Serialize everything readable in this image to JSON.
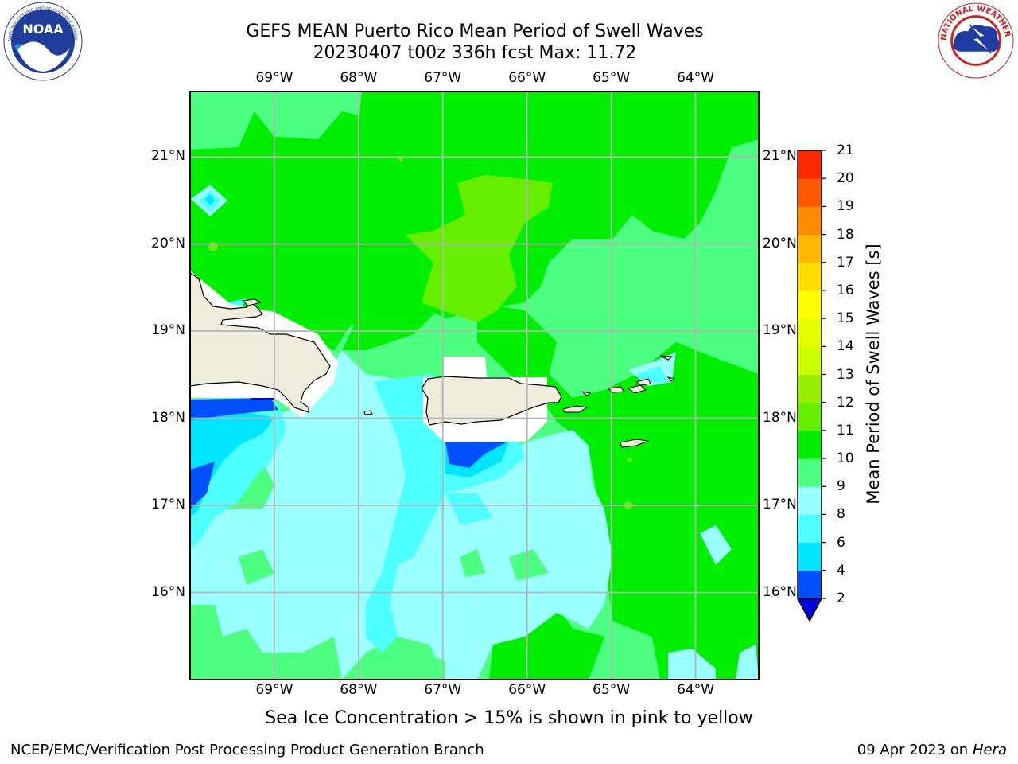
{
  "header": {
    "title_line1": "GEFS MEAN Puerto Rico Mean Period of Swell Waves",
    "title_line2": "20230407 t00z 336h fcst   Max: 11.72"
  },
  "logos": {
    "left": {
      "icon": "noaa-logo-icon",
      "text": "NOAA",
      "ring_text": "NATIONAL OCEANIC AND ATMOSPHERIC ADMINISTRATION · U.S. DEPARTMENT OF COMMERCE"
    },
    "right": {
      "icon": "nws-logo-icon",
      "ring_text": "NATIONAL WEATHER SERVICE"
    }
  },
  "map": {
    "longitude_labels": [
      "69°W",
      "68°W",
      "67°W",
      "66°W",
      "65°W",
      "64°W"
    ],
    "latitude_labels": [
      "21°N",
      "20°N",
      "19°N",
      "18°N",
      "17°N",
      "16°N"
    ],
    "longitudes": [
      -69,
      -68,
      -67,
      -66,
      -65,
      -64
    ],
    "latitudes": [
      21,
      20,
      19,
      18,
      17,
      16
    ],
    "extent": {
      "lon_min": -70.0,
      "lon_max": -63.25,
      "lat_min": 15.0,
      "lat_max": 21.75
    },
    "max_value": 11.72
  },
  "colorbar": {
    "label": "Mean Period of Swell Waves [s]",
    "ticks": [
      "21",
      "20",
      "19",
      "18",
      "17",
      "16",
      "15",
      "14",
      "13",
      "12",
      "11",
      "10",
      "9",
      "8",
      "6",
      "4",
      "2"
    ],
    "levels": [
      2,
      4,
      6,
      8,
      9,
      10,
      11,
      12,
      13,
      14,
      15,
      16,
      17,
      18,
      19,
      20,
      21
    ],
    "colors": [
      "#0050ff",
      "#00e5ff",
      "#4dffff",
      "#99ffff",
      "#4dff80",
      "#00ee00",
      "#66ee00",
      "#99ee00",
      "#ccff00",
      "#e5ff00",
      "#ffff00",
      "#ffdd00",
      "#ffb700",
      "#ff8c00",
      "#ff5a00",
      "#ff2800",
      "#ff0000"
    ],
    "under_color": "#0000e0"
  },
  "footer": {
    "note": "Sea Ice Concentration > 15% is shown in pink to yellow",
    "credit_left": "NCEP/EMC/Verification Post Processing Product Generation Branch",
    "credit_right_date": "09 Apr 2023 on ",
    "credit_right_host": "Hera"
  }
}
